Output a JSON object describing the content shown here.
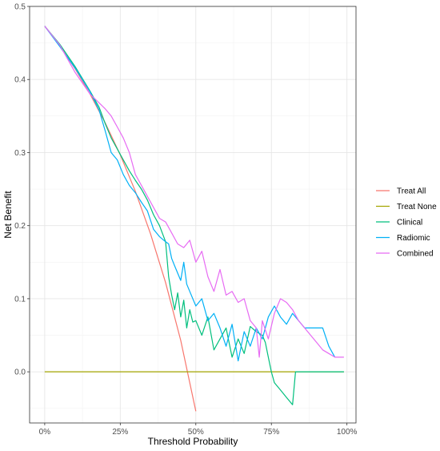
{
  "chart_data": {
    "type": "line",
    "xlabel": "Threshold Probability",
    "ylabel": "Net Benefit",
    "xlim": [
      -0.05,
      1.03
    ],
    "ylim": [
      -0.07,
      0.5
    ],
    "x_ticks": [
      0,
      0.25,
      0.5,
      0.75,
      1.0
    ],
    "x_tick_labels": [
      "0%",
      "25%",
      "50%",
      "75%",
      "100%"
    ],
    "y_ticks": [
      0.0,
      0.1,
      0.2,
      0.3,
      0.4,
      0.5
    ],
    "y_tick_labels": [
      "0.0",
      "0.1",
      "0.2",
      "0.3",
      "0.4",
      "0.5"
    ],
    "grid": true,
    "legend_position": "right",
    "series": [
      {
        "name": "Treat All",
        "color": "#F8766D",
        "x": [
          0.0,
          0.05,
          0.1,
          0.15,
          0.2,
          0.25,
          0.3,
          0.35,
          0.4,
          0.45,
          0.5
        ],
        "y": [
          0.473,
          0.446,
          0.415,
          0.38,
          0.341,
          0.297,
          0.247,
          0.189,
          0.122,
          0.043,
          -0.054
        ]
      },
      {
        "name": "Treat None",
        "color": "#A3A500",
        "x": [
          0.0,
          0.99
        ],
        "y": [
          0.0,
          0.0
        ]
      },
      {
        "name": "Clinical",
        "color": "#00BF7D",
        "x": [
          0.0,
          0.05,
          0.1,
          0.15,
          0.18,
          0.2,
          0.22,
          0.24,
          0.26,
          0.28,
          0.3,
          0.32,
          0.34,
          0.36,
          0.38,
          0.4,
          0.41,
          0.42,
          0.43,
          0.44,
          0.45,
          0.46,
          0.47,
          0.48,
          0.49,
          0.5,
          0.52,
          0.54,
          0.56,
          0.58,
          0.6,
          0.62,
          0.64,
          0.66,
          0.68,
          0.7,
          0.72,
          0.73,
          0.74,
          0.75,
          0.76,
          0.78,
          0.8,
          0.82,
          0.83,
          0.84,
          0.86,
          0.9,
          0.95,
          0.99
        ],
        "y": [
          0.473,
          0.448,
          0.418,
          0.384,
          0.362,
          0.34,
          0.32,
          0.305,
          0.29,
          0.275,
          0.262,
          0.25,
          0.235,
          0.215,
          0.2,
          0.178,
          0.13,
          0.105,
          0.085,
          0.108,
          0.075,
          0.098,
          0.06,
          0.085,
          0.068,
          0.07,
          0.05,
          0.075,
          0.03,
          0.045,
          0.06,
          0.02,
          0.045,
          0.025,
          0.062,
          0.055,
          0.05,
          0.04,
          0.02,
          0.0,
          -0.015,
          -0.025,
          -0.035,
          -0.045,
          0.0,
          0.0,
          0.0,
          0.0,
          0.0,
          0.0
        ]
      },
      {
        "name": "Radiomic",
        "color": "#00B0F6",
        "x": [
          0.0,
          0.05,
          0.1,
          0.15,
          0.18,
          0.2,
          0.22,
          0.24,
          0.26,
          0.28,
          0.3,
          0.32,
          0.34,
          0.36,
          0.38,
          0.4,
          0.41,
          0.42,
          0.43,
          0.44,
          0.45,
          0.46,
          0.47,
          0.48,
          0.5,
          0.52,
          0.54,
          0.56,
          0.58,
          0.6,
          0.62,
          0.64,
          0.66,
          0.68,
          0.7,
          0.72,
          0.74,
          0.76,
          0.78,
          0.8,
          0.82,
          0.84,
          0.86,
          0.88,
          0.9,
          0.92,
          0.94,
          0.96
        ],
        "y": [
          0.473,
          0.445,
          0.416,
          0.383,
          0.358,
          0.33,
          0.3,
          0.29,
          0.27,
          0.255,
          0.245,
          0.232,
          0.22,
          0.195,
          0.185,
          0.178,
          0.175,
          0.155,
          0.145,
          0.135,
          0.125,
          0.15,
          0.12,
          0.11,
          0.09,
          0.1,
          0.07,
          0.08,
          0.06,
          0.035,
          0.065,
          0.015,
          0.055,
          0.035,
          0.06,
          0.045,
          0.075,
          0.09,
          0.075,
          0.065,
          0.08,
          0.07,
          0.06,
          0.06,
          0.06,
          0.06,
          0.035,
          0.02
        ]
      },
      {
        "name": "Combined",
        "color": "#E76BF3",
        "x": [
          0.0,
          0.05,
          0.1,
          0.15,
          0.18,
          0.2,
          0.22,
          0.24,
          0.26,
          0.28,
          0.3,
          0.32,
          0.34,
          0.36,
          0.38,
          0.4,
          0.42,
          0.44,
          0.46,
          0.48,
          0.5,
          0.52,
          0.54,
          0.56,
          0.58,
          0.6,
          0.62,
          0.64,
          0.66,
          0.68,
          0.7,
          0.71,
          0.72,
          0.74,
          0.76,
          0.78,
          0.8,
          0.82,
          0.84,
          0.86,
          0.88,
          0.9,
          0.92,
          0.94,
          0.96,
          0.98,
          0.99
        ],
        "y": [
          0.473,
          0.447,
          0.41,
          0.38,
          0.368,
          0.36,
          0.35,
          0.335,
          0.32,
          0.3,
          0.27,
          0.255,
          0.24,
          0.225,
          0.21,
          0.205,
          0.19,
          0.175,
          0.17,
          0.18,
          0.15,
          0.165,
          0.13,
          0.11,
          0.14,
          0.105,
          0.11,
          0.095,
          0.1,
          0.07,
          0.06,
          0.02,
          0.07,
          0.045,
          0.08,
          0.1,
          0.095,
          0.085,
          0.07,
          0.06,
          0.05,
          0.04,
          0.03,
          0.025,
          0.02,
          0.02,
          0.02
        ]
      }
    ]
  }
}
